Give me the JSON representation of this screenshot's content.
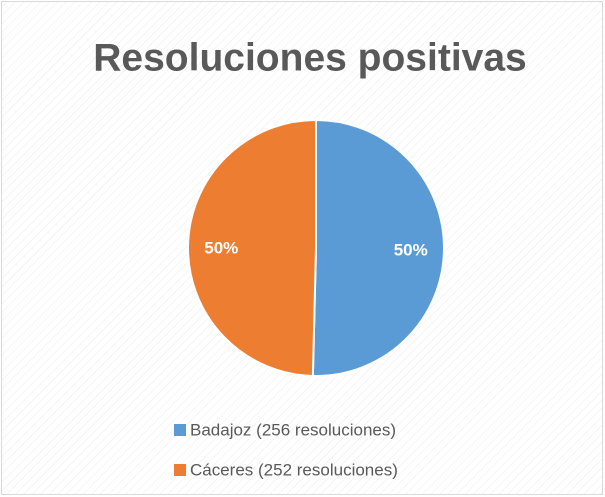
{
  "chart_data": {
    "type": "pie",
    "title": "Resoluciones positivas",
    "categories": [
      "Badajoz (256 resoluciones)",
      "Cáceres (252 resoluciones)"
    ],
    "values": [
      50.39,
      49.61
    ],
    "value_labels": [
      "50%",
      "50%"
    ],
    "colors": [
      "#5b9bd5",
      "#ed7d31"
    ],
    "legend": "bottom"
  }
}
